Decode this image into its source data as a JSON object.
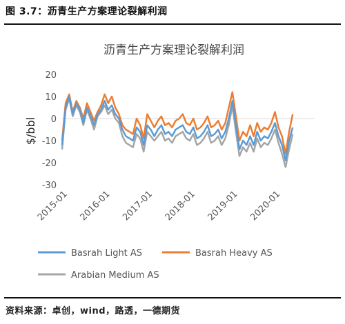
{
  "figure": {
    "label": "图 3.7：沥青生产方案理论裂解利润",
    "source": "资料来源：卓创，wind，路透，一德期货"
  },
  "chart_data": {
    "type": "line",
    "title": "沥青生产方案理论裂解利润",
    "xlabel": "",
    "ylabel": "$/bbl",
    "ylim": [
      -30,
      20
    ],
    "yticks": [
      20,
      10,
      0,
      -10,
      -20,
      -30
    ],
    "xlim": [
      "2015-01",
      "2020-12"
    ],
    "xticks": [
      "2015-01",
      "2016-01",
      "2017-01",
      "2018-01",
      "2019-01",
      "2020-01"
    ],
    "grid": false,
    "legend_position": "bottom",
    "x": [
      "2015-01",
      "2015-02",
      "2015-03",
      "2015-04",
      "2015-05",
      "2015-06",
      "2015-07",
      "2015-08",
      "2015-09",
      "2015-10",
      "2015-11",
      "2015-12",
      "2016-01",
      "2016-02",
      "2016-03",
      "2016-04",
      "2016-05",
      "2016-06",
      "2016-07",
      "2016-08",
      "2016-09",
      "2016-10",
      "2016-11",
      "2016-12",
      "2017-01",
      "2017-02",
      "2017-03",
      "2017-04",
      "2017-05",
      "2017-06",
      "2017-07",
      "2017-08",
      "2017-09",
      "2017-10",
      "2017-11",
      "2017-12",
      "2018-01",
      "2018-02",
      "2018-03",
      "2018-04",
      "2018-05",
      "2018-06",
      "2018-07",
      "2018-08",
      "2018-09",
      "2018-10",
      "2018-11",
      "2018-12",
      "2019-01",
      "2019-02",
      "2019-03",
      "2019-04",
      "2019-05",
      "2019-06",
      "2019-07",
      "2019-08",
      "2019-09",
      "2019-10",
      "2019-11",
      "2019-12",
      "2020-01",
      "2020-02",
      "2020-03",
      "2020-04",
      "2020-05",
      "2020-06"
    ],
    "series": [
      {
        "name": "Basrah Light AS",
        "color": "#5b9bd5",
        "values": [
          -12,
          5,
          10,
          2,
          7,
          4,
          -2,
          5,
          1,
          -3,
          2,
          4,
          8,
          4,
          6,
          2,
          0,
          -5,
          -8,
          -9,
          -10,
          -4,
          -6,
          -12,
          -3,
          -5,
          -8,
          -5,
          -3,
          -7,
          -6,
          -8,
          -5,
          -4,
          -3,
          -6,
          -7,
          -4,
          -9,
          -8,
          -6,
          -3,
          -8,
          -7,
          -5,
          -9,
          -6,
          0,
          8,
          -3,
          -14,
          -10,
          -12,
          -8,
          -12,
          -6,
          -10,
          -8,
          -9,
          -6,
          -2,
          -8,
          -12,
          -19,
          -10,
          -4
        ]
      },
      {
        "name": "Basrah Heavy AS",
        "color": "#ed7d31",
        "values": [
          -10,
          7,
          11,
          3,
          8,
          5,
          0,
          7,
          3,
          -1,
          3,
          6,
          11,
          7,
          10,
          5,
          2,
          -3,
          -5,
          -6,
          -7,
          0,
          -3,
          -9,
          2,
          -1,
          -4,
          -1,
          1,
          -3,
          -2,
          -4,
          -1,
          0,
          2,
          -2,
          -3,
          0,
          -5,
          -4,
          -2,
          1,
          -4,
          -3,
          -1,
          -5,
          -2,
          5,
          12,
          1,
          -10,
          -6,
          -8,
          -3,
          -8,
          -2,
          -6,
          -4,
          -5,
          -2,
          3,
          -4,
          -8,
          -16,
          -6,
          2
        ]
      },
      {
        "name": "Arabian Medium AS",
        "color": "#a5a5a5",
        "values": [
          -14,
          4,
          9,
          1,
          6,
          3,
          -3,
          4,
          0,
          -5,
          1,
          3,
          6,
          2,
          4,
          0,
          -2,
          -8,
          -11,
          -12,
          -13,
          -7,
          -9,
          -15,
          -6,
          -8,
          -10,
          -8,
          -6,
          -10,
          -9,
          -11,
          -8,
          -7,
          -6,
          -9,
          -10,
          -7,
          -12,
          -11,
          -9,
          -6,
          -11,
          -10,
          -8,
          -12,
          -9,
          -3,
          6,
          -6,
          -17,
          -13,
          -15,
          -11,
          -15,
          -9,
          -13,
          -11,
          -12,
          -9,
          -5,
          -11,
          -16,
          -22,
          -14,
          -7
        ]
      }
    ]
  }
}
